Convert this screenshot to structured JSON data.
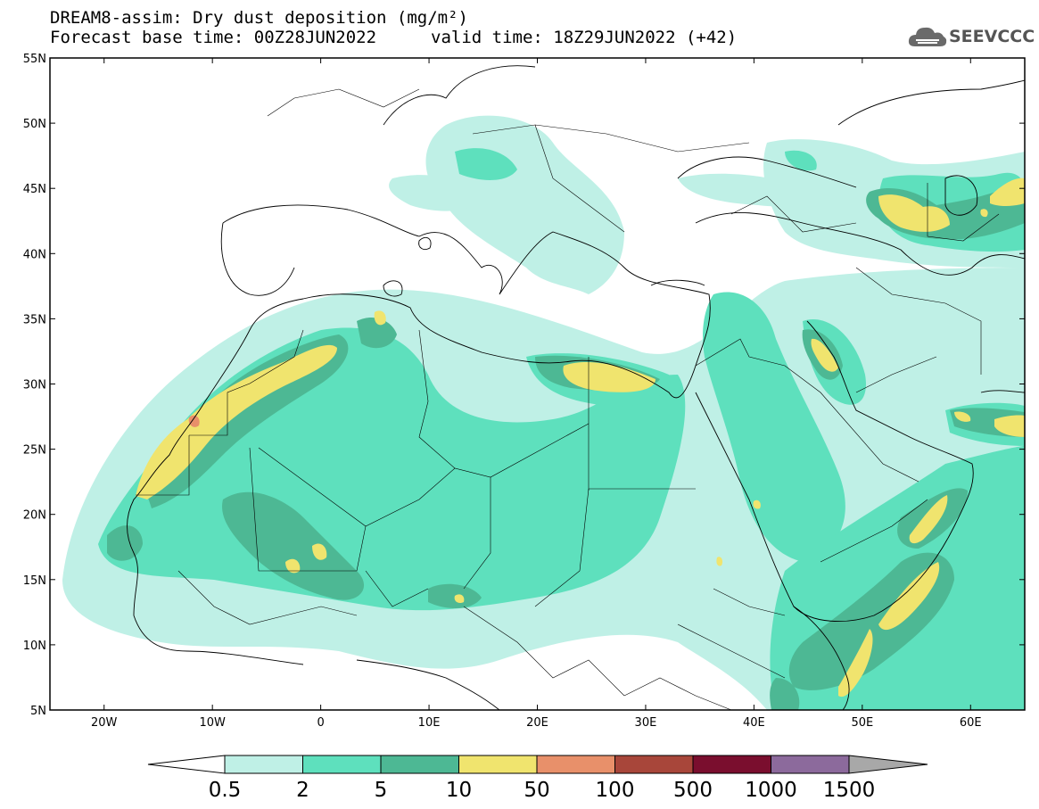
{
  "title_line1": "DREAM8-assim: Dry dust deposition (mg/m²)",
  "title_line2": "Forecast base time: 00Z28JUN2022",
  "valid_time": "valid time: 18Z29JUN2022 (+42)",
  "logo_text": "SEEVCCC",
  "logo_icon": "cloud-icon",
  "map_extent": {
    "lon": [
      -25,
      65
    ],
    "lat": [
      5,
      55
    ]
  },
  "lat_ticks": [
    "55N",
    "50N",
    "45N",
    "40N",
    "35N",
    "30N",
    "25N",
    "20N",
    "15N",
    "10N",
    "5N"
  ],
  "lon_ticks": [
    "20W",
    "10W",
    "0",
    "10E",
    "20E",
    "30E",
    "40E",
    "50E",
    "60E"
  ],
  "colorbar": {
    "labels": [
      "0.5",
      "2",
      "5",
      "10",
      "50",
      "100",
      "500",
      "1000",
      "1500"
    ],
    "colors": [
      "#bff0e6",
      "#5ee0bd",
      "#4db894",
      "#f0e46e",
      "#e8906a",
      "#a8463a",
      "#7a0e2e",
      "#8c6a9c"
    ],
    "extend_low_color": "#ffffff",
    "extend_high_color": "#a8a8a8"
  }
}
